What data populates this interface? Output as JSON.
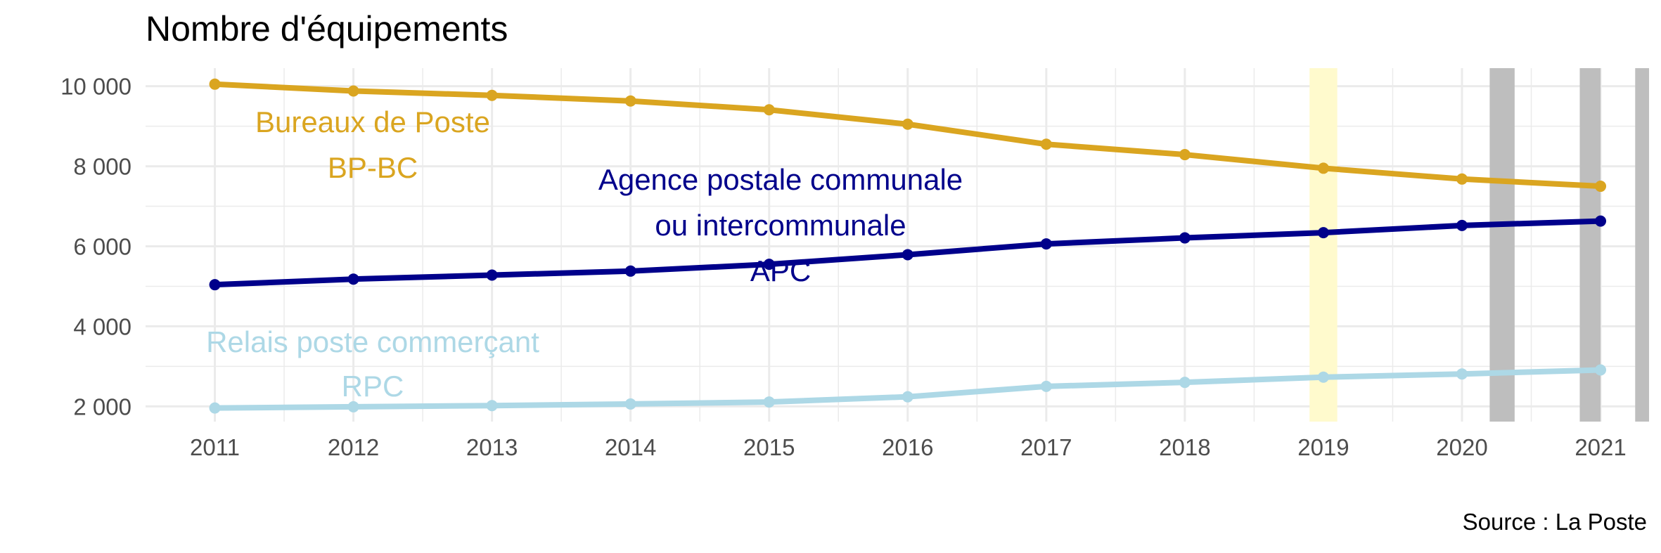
{
  "chart_data": {
    "type": "line",
    "title": "Nombre d'équipements",
    "caption": "Source : La Poste",
    "xlabel": "",
    "ylabel": "",
    "x": [
      2011,
      2012,
      2013,
      2014,
      2015,
      2016,
      2017,
      2018,
      2019,
      2020,
      2021
    ],
    "x_tick_labels": [
      "2011",
      "2012",
      "2013",
      "2014",
      "2015",
      "2016",
      "2017",
      "2018",
      "2019",
      "2020",
      "2021"
    ],
    "y_tick_values": [
      2000,
      4000,
      6000,
      8000,
      10000
    ],
    "y_tick_labels": [
      "2 000",
      "4 000",
      "6 000",
      "8 000",
      "10 000"
    ],
    "xlim": [
      2010.5,
      2021.35
    ],
    "ylim": [
      1620,
      10450
    ],
    "grid": true,
    "series": [
      {
        "key": "bp",
        "label_lines": [
          "Bureaux de Poste",
          "BP-BC"
        ],
        "color": "#DAA520",
        "values": [
          10050,
          9880,
          9770,
          9630,
          9410,
          9050,
          8550,
          8290,
          7950,
          7680,
          7500
        ]
      },
      {
        "key": "apc",
        "label_lines": [
          "Agence postale communale",
          "ou intercommunale",
          "APC"
        ],
        "color": "#00008B",
        "values": [
          5040,
          5180,
          5280,
          5380,
          5550,
          5790,
          6060,
          6210,
          6340,
          6520,
          6630
        ]
      },
      {
        "key": "rpc",
        "label_lines": [
          "Relais poste commerçant",
          "RPC"
        ],
        "color": "#ADD8E6",
        "values": [
          1960,
          1990,
          2020,
          2060,
          2110,
          2240,
          2500,
          2600,
          2730,
          2810,
          2910
        ]
      }
    ],
    "highlight_bands": [
      {
        "from": 2018.9,
        "to": 2019.1,
        "color": "#FFFACD"
      },
      {
        "from": 2020.2,
        "to": 2020.38,
        "color": "#BEBEBE"
      },
      {
        "from": 2020.85,
        "to": 2021.0,
        "color": "#BEBEBE"
      },
      {
        "from": 2021.25,
        "to": 2021.35,
        "color": "#BEBEBE"
      }
    ]
  }
}
